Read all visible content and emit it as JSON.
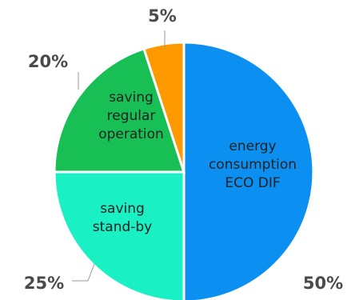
{
  "chart_data": {
    "type": "pie",
    "title": "",
    "slices": [
      {
        "label": "energy consumption ECO DIF",
        "value": 50,
        "pct_label": "50%",
        "color": "#0b8ff0"
      },
      {
        "label": "saving stand-by",
        "value": 25,
        "pct_label": "25%",
        "color": "#19f0c4"
      },
      {
        "label": "saving regular operation",
        "value": 20,
        "pct_label": "20%",
        "color": "#17bf55"
      },
      {
        "label": "",
        "value": 5,
        "pct_label": "5%",
        "color": "#ff9900"
      }
    ],
    "slice_label_lines": [
      [
        "energy",
        "consumption",
        "ECO DIF"
      ],
      [
        "saving",
        "stand-by"
      ],
      [
        "saving",
        "regular",
        "operation"
      ],
      []
    ],
    "start_angle": "12 o'clock",
    "direction": "clockwise",
    "legend": "none"
  }
}
